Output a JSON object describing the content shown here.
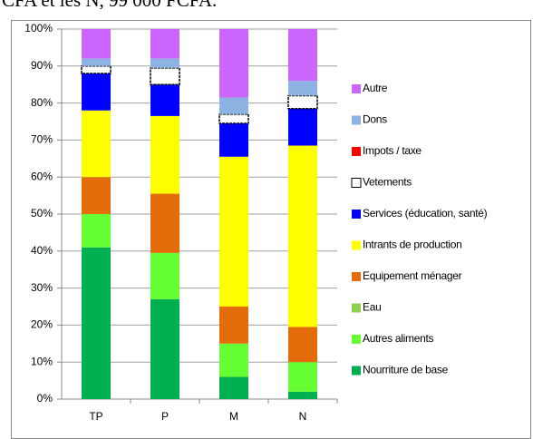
{
  "caption": "CFA et les N, 99 000 FCFA.",
  "chart_data": {
    "type": "stacked_bar",
    "categories": [
      "TP",
      "P",
      "M",
      "N"
    ],
    "ylim": [
      0,
      100
    ],
    "yticks": [
      {
        "value": 0,
        "label": "0%"
      },
      {
        "value": 10,
        "label": "10%"
      },
      {
        "value": 20,
        "label": "20%"
      },
      {
        "value": 30,
        "label": "30%"
      },
      {
        "value": 40,
        "label": "40%"
      },
      {
        "value": 50,
        "label": "50%"
      },
      {
        "value": 60,
        "label": "60%"
      },
      {
        "value": 70,
        "label": "70%"
      },
      {
        "value": 80,
        "label": "80%"
      },
      {
        "value": 90,
        "label": "90%"
      },
      {
        "value": 100,
        "label": "100%"
      }
    ],
    "grid": true,
    "legend": "right",
    "series": [
      {
        "name": "Nourriture de base",
        "color": "#00b050",
        "values": [
          41,
          27,
          6,
          2
        ]
      },
      {
        "name": "Autres aliments",
        "color": "#66ff33",
        "values": [
          9,
          12.5,
          9,
          8
        ]
      },
      {
        "name": "Eau",
        "color": "#92d050",
        "values": [
          0,
          0,
          0,
          0
        ]
      },
      {
        "name": "Equipement ménager",
        "color": "#e46c0a",
        "values": [
          10,
          16,
          10,
          9.5
        ]
      },
      {
        "name": "Intrants de production",
        "color": "#ffff00",
        "values": [
          18,
          21,
          40.5,
          49
        ]
      },
      {
        "name": "Services (éducation, santé)",
        "color": "#0000ff",
        "values": [
          10,
          8.5,
          9,
          10
        ]
      },
      {
        "name": "Vetements",
        "color": "#ffffff",
        "values": [
          2,
          4.5,
          2.5,
          3.5
        ]
      },
      {
        "name": "Impots / taxe",
        "color": "#ff0000",
        "values": [
          0,
          0,
          0,
          0
        ]
      },
      {
        "name": "Dons",
        "color": "#8db3e2",
        "values": [
          2,
          2.5,
          4.5,
          4
        ]
      },
      {
        "name": "Autre",
        "color": "#cc66ff",
        "values": [
          8,
          8,
          18.5,
          14
        ]
      }
    ]
  }
}
